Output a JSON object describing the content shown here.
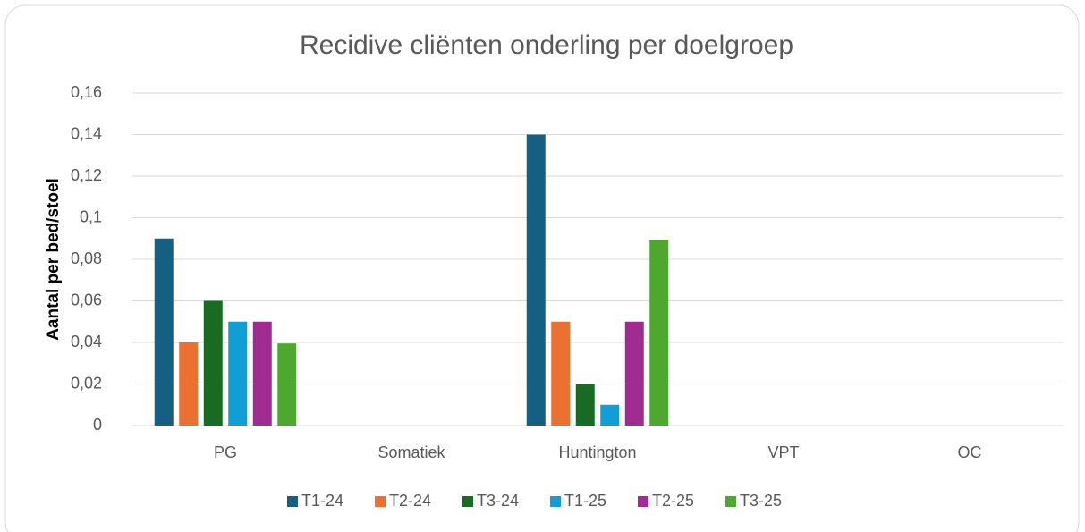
{
  "chart_data": {
    "type": "bar",
    "title": "Recidive cliënten onderling per doelgroep",
    "y_label": "Aantal per bed/stoel",
    "categories": [
      "PG",
      "Somatiek",
      "Huntington",
      "VPT",
      "OC"
    ],
    "series": [
      {
        "name": "T1-24",
        "color": "#156082",
        "values": [
          0.09,
          null,
          0.14,
          null,
          null
        ]
      },
      {
        "name": "T2-24",
        "color": "#e97132",
        "values": [
          0.04,
          null,
          0.05,
          null,
          null
        ]
      },
      {
        "name": "T3-24",
        "color": "#196b24",
        "values": [
          0.06,
          null,
          0.02,
          null,
          null
        ]
      },
      {
        "name": "T1-25",
        "color": "#0f9ed5",
        "values": [
          0.05,
          null,
          0.01,
          null,
          null
        ]
      },
      {
        "name": "T2-25",
        "color": "#a02b93",
        "values": [
          0.05,
          null,
          0.05,
          null,
          null
        ]
      },
      {
        "name": "T3-25",
        "color": "#4ea72e",
        "values": [
          0.0395,
          null,
          0.0895,
          null,
          null
        ]
      }
    ],
    "ylim": [
      0,
      0.16
    ],
    "yticks": [
      0,
      {
        "value": 0.02,
        "label": "0,02"
      },
      {
        "value": 0.04,
        "label": "0,04"
      },
      {
        "value": 0.06,
        "label": "0,06"
      },
      {
        "value": 0.08,
        "label": "0,08"
      },
      {
        "value": 0.1,
        "label": "0,1"
      },
      {
        "value": 0.12,
        "label": "0,12"
      },
      {
        "value": 0.14,
        "label": "0,14"
      },
      {
        "value": 0.16,
        "label": "0,16"
      }
    ],
    "grid": true,
    "legend": "bottom"
  }
}
